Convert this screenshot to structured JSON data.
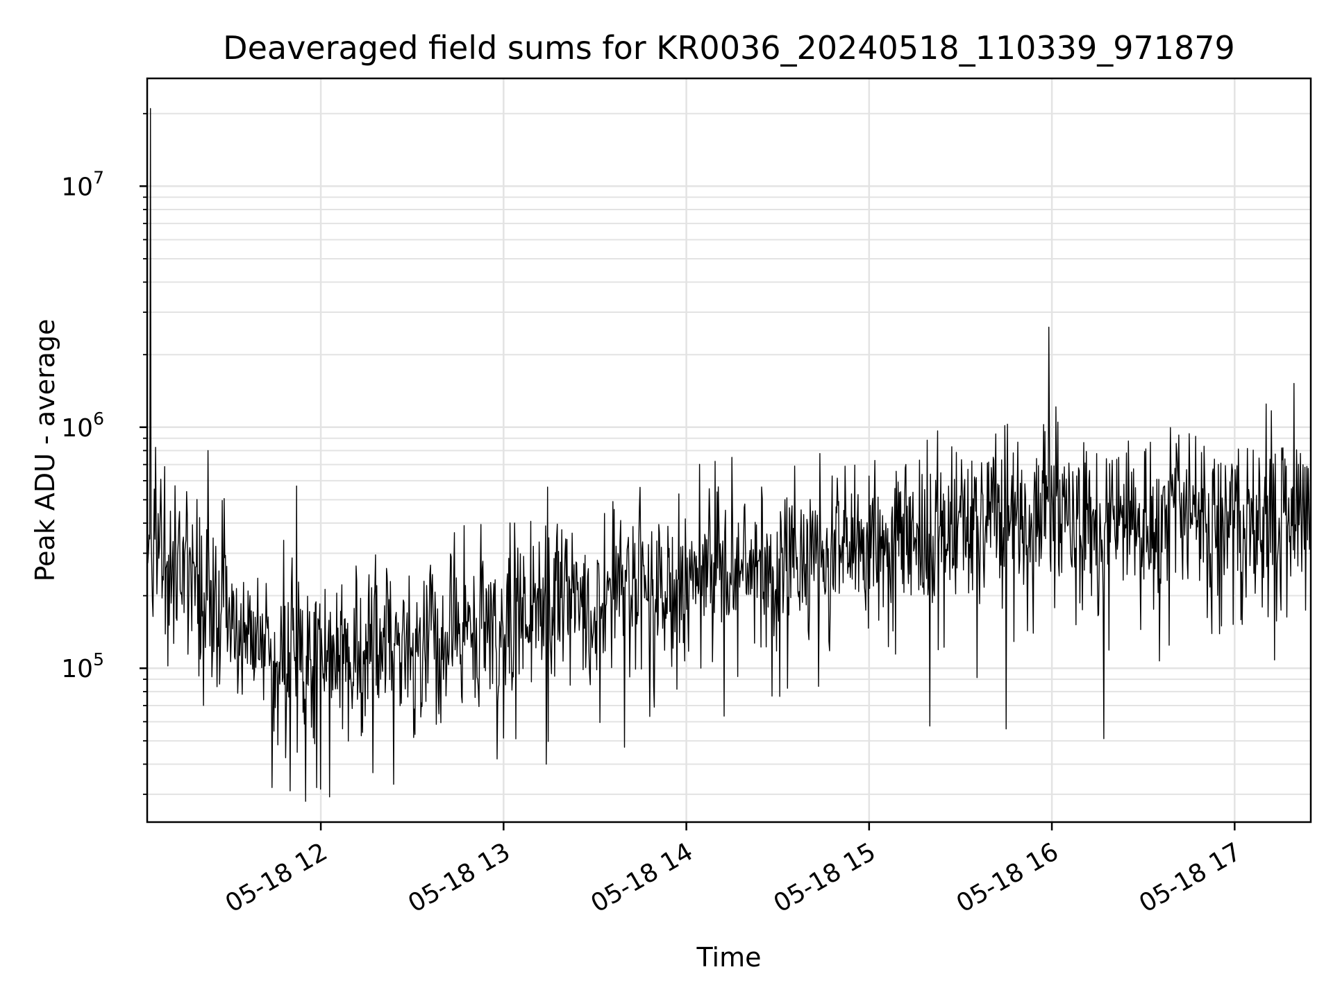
{
  "chart_data": {
    "type": "line",
    "title": "Deaveraged field sums for KR0036_20240518_110339_971879",
    "xlabel": "Time",
    "ylabel": "Peak ADU - average",
    "yscale": "log",
    "xlim": [
      "2024-05-18 11:03",
      "2024-05-18 17:25"
    ],
    "ylim": [
      23000,
      28000000
    ],
    "grid": true,
    "line_color": "#000000",
    "x_ticks": [
      "05-18 12",
      "05-18 13",
      "05-18 14",
      "05-18 15",
      "05-18 16",
      "05-18 17"
    ],
    "y_ticks": [
      {
        "base": "10",
        "exp": "5",
        "value": 100000
      },
      {
        "base": "10",
        "exp": "6",
        "value": 1000000
      },
      {
        "base": "10",
        "exp": "7",
        "value": 10000000
      }
    ],
    "series": [
      {
        "trend": [
          {
            "x": "2024-05-18 11:03",
            "y": 400000
          },
          {
            "x": "2024-05-18 11:10",
            "y": 260000
          },
          {
            "x": "2024-05-18 11:30",
            "y": 170000
          },
          {
            "x": "2024-05-18 11:50",
            "y": 115000
          },
          {
            "x": "2024-05-18 12:10",
            "y": 118000
          },
          {
            "x": "2024-05-18 12:30",
            "y": 130000
          },
          {
            "x": "2024-05-18 13:00",
            "y": 160000
          },
          {
            "x": "2024-05-18 13:30",
            "y": 190000
          },
          {
            "x": "2024-05-18 14:00",
            "y": 220000
          },
          {
            "x": "2024-05-18 14:30",
            "y": 280000
          },
          {
            "x": "2024-05-18 15:00",
            "y": 340000
          },
          {
            "x": "2024-05-18 15:30",
            "y": 380000
          },
          {
            "x": "2024-05-18 16:00",
            "y": 400000
          },
          {
            "x": "2024-05-18 16:30",
            "y": 410000
          },
          {
            "x": "2024-05-18 17:00",
            "y": 420000
          },
          {
            "x": "2024-05-18 17:25",
            "y": 450000
          }
        ],
        "spikes": [
          {
            "x": "2024-05-18 11:04",
            "y": 21000000
          },
          {
            "x": "2024-05-18 11:03",
            "y": 1350000
          },
          {
            "x": "2024-05-18 11:23",
            "y": 800000
          },
          {
            "x": "2024-05-18 11:52",
            "y": 570000
          },
          {
            "x": "2024-05-18 14:15",
            "y": 750000
          },
          {
            "x": "2024-05-18 15:59",
            "y": 2600000
          },
          {
            "x": "2024-05-18 16:02",
            "y": 1050000
          },
          {
            "x": "2024-05-18 17:12",
            "y": 1170000
          },
          {
            "x": "2024-05-18 11:44",
            "y": 32000
          },
          {
            "x": "2024-05-18 11:50",
            "y": 31000
          },
          {
            "x": "2024-05-18 12:00",
            "y": 31500
          },
          {
            "x": "2024-05-18 12:24",
            "y": 33000
          },
          {
            "x": "2024-05-18 13:14",
            "y": 40000
          },
          {
            "x": "2024-05-18 15:45",
            "y": 56000
          },
          {
            "x": "2024-05-18 16:17",
            "y": 51000
          }
        ]
      }
    ]
  }
}
